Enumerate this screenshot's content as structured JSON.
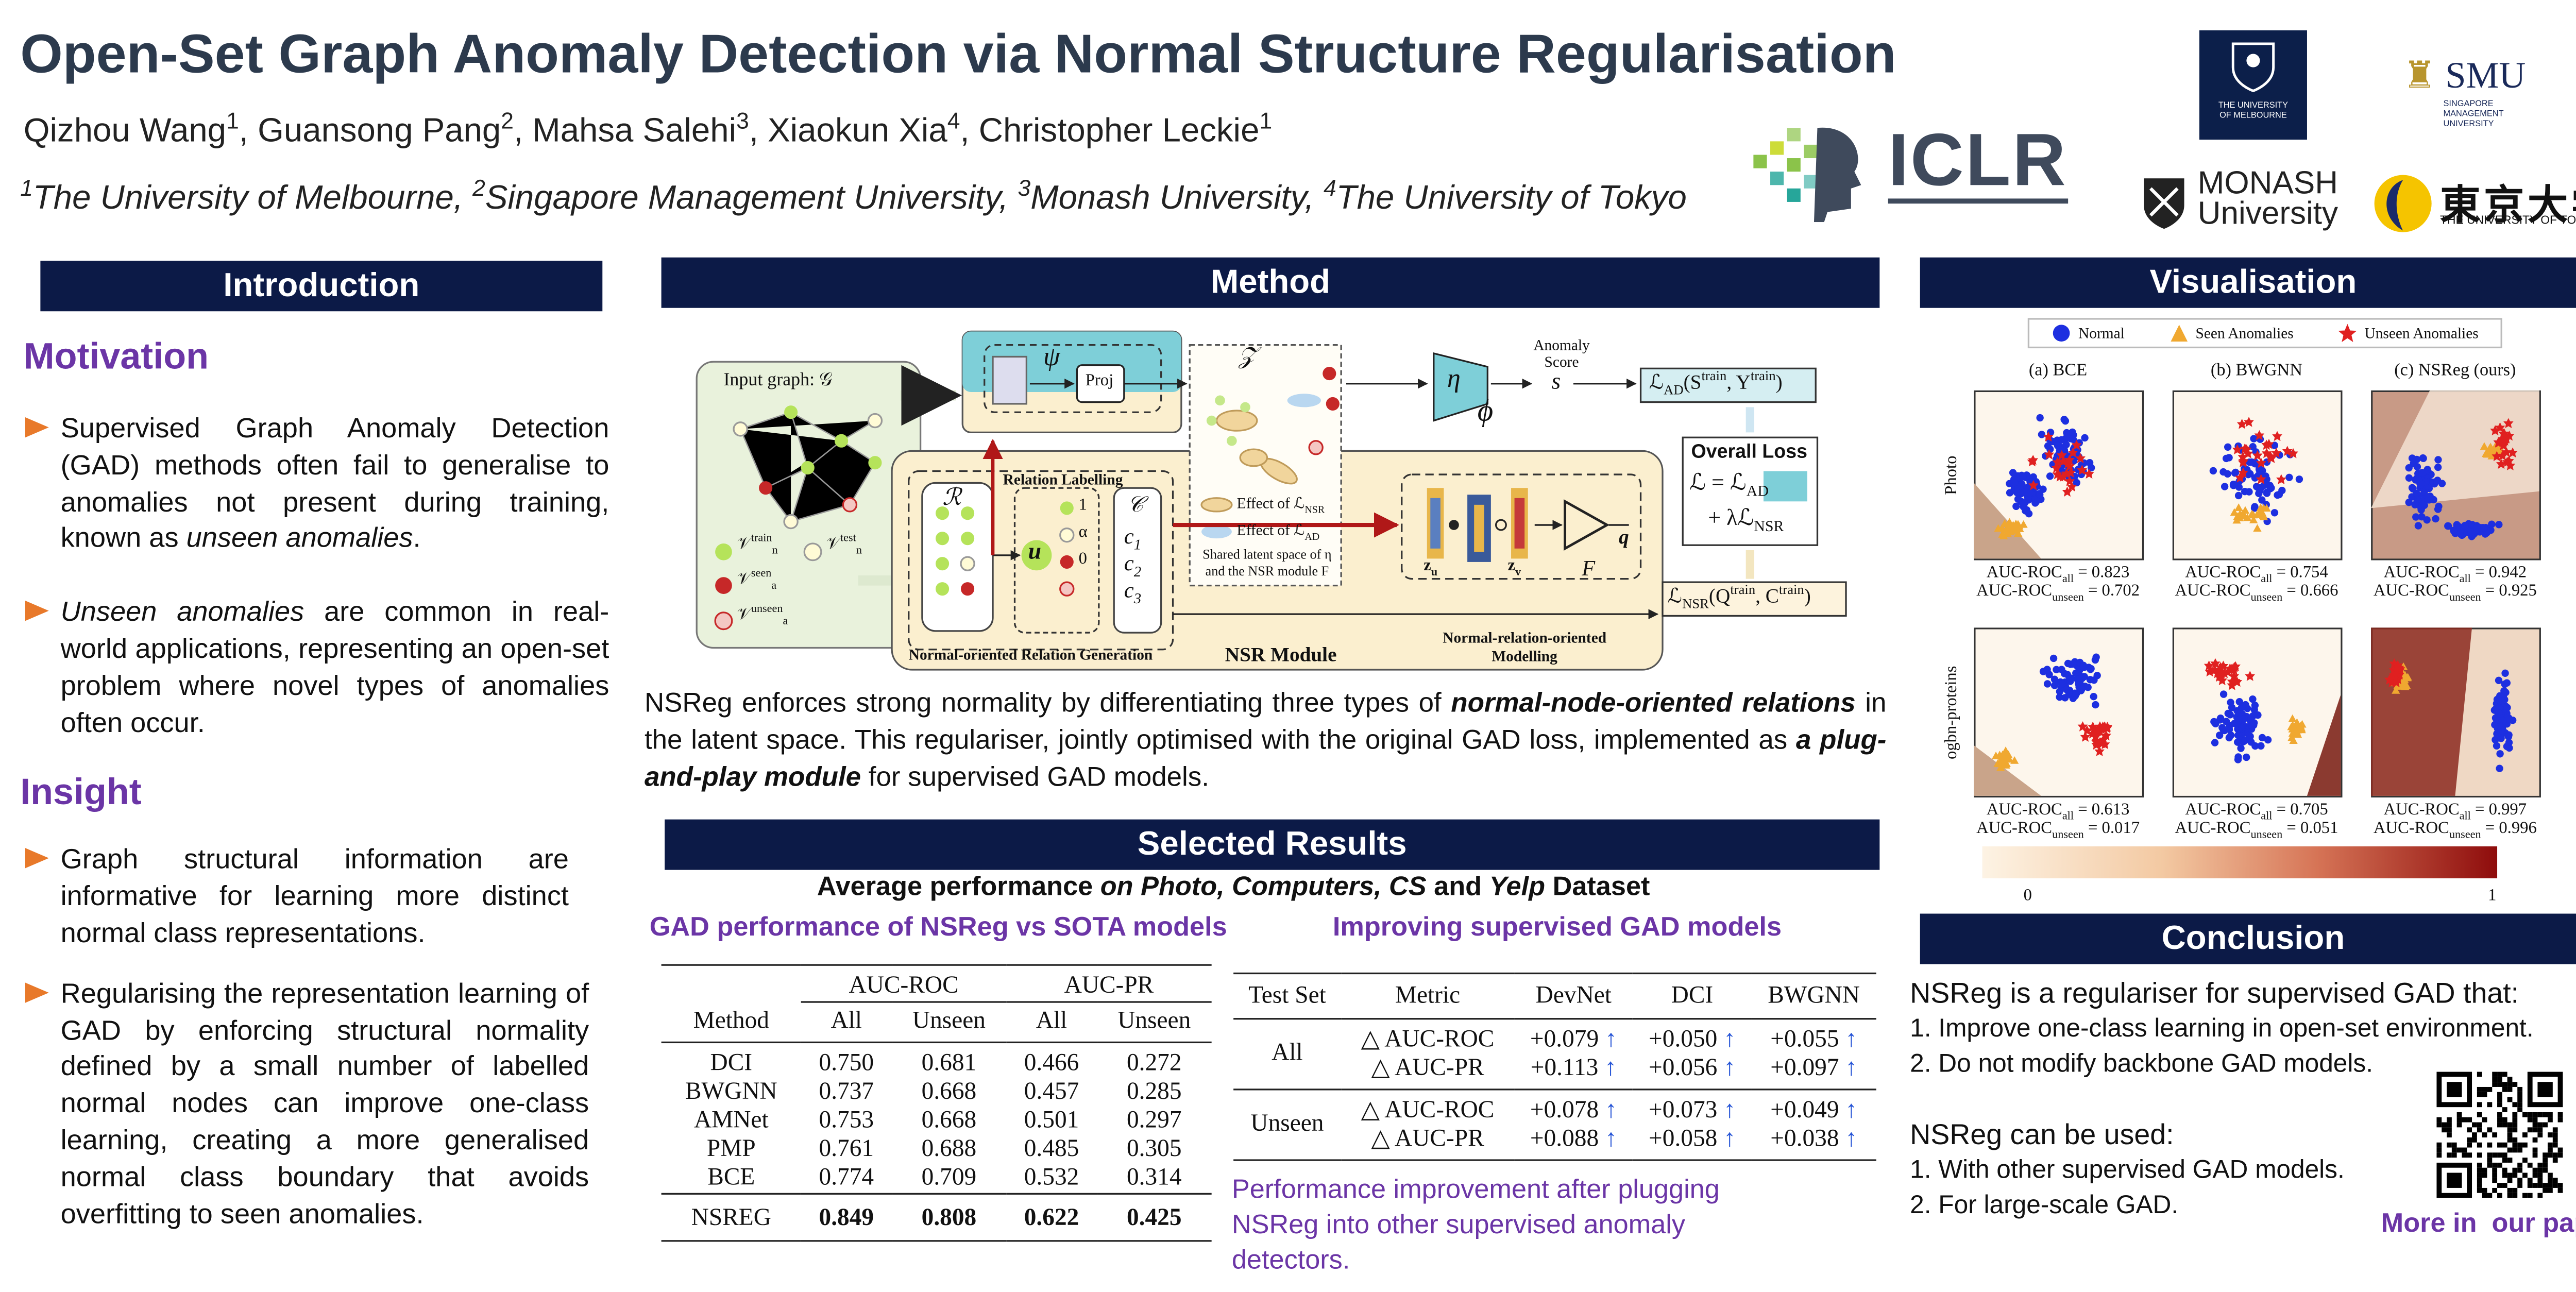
{
  "header": {
    "title": "Open-Set Graph Anomaly Detection via Normal Structure Regularisation",
    "authors": [
      "Qizhou Wang",
      {
        "sup": "1"
      },
      ", Guansong Pang",
      {
        "sup": "2"
      },
      ", Mahsa Salehi",
      {
        "sup": "3"
      },
      ", Xiaokun Xia",
      {
        "sup": "4"
      },
      ", Christopher Leckie",
      {
        "sup": "1"
      }
    ],
    "affiliations": [
      {
        "sup": "1"
      },
      "The University of Melbourne, ",
      {
        "sup": "2"
      },
      "Singapore Management University, ",
      {
        "sup": "3"
      },
      "Monash University, ",
      {
        "sup": "4"
      },
      "The University of Tokyo"
    ],
    "logos": {
      "iclr": "ICLR",
      "melbourne": "THE UNIVERSITY OF MELBOURNE",
      "smu": "SMU",
      "smu_full": "SINGAPORE MANAGEMENT UNIVERSITY",
      "monash_1": "MONASH",
      "monash_2": "University",
      "tokyo": "東京大学",
      "tokyo_full": "THE UNIVERSITY OF TOKYO"
    }
  },
  "introduction": {
    "heading": "Introduction",
    "motivation": {
      "heading": "Motivation",
      "bullets": [
        [
          "Supervised Graph Anomaly Detection (GAD) methods often fail to generalise to anomalies not present during training, known as ",
          {
            "i": "unseen anomalies"
          },
          "."
        ],
        [
          {
            "i": "Unseen anomalies"
          },
          " are common in real-world applications, representing an open-set problem where novel types of anomalies often occur."
        ]
      ]
    },
    "insight": {
      "heading": "Insight",
      "bullets": [
        [
          "Graph structural information are informative for learning more distinct normal class representations."
        ],
        [
          "Regularising the representation learning of GAD by enforcing structural normality defined by a small number of labelled normal nodes can improve one-class learning, creating a more generalised normal class boundary that avoids overfitting to seen anomalies."
        ]
      ]
    }
  },
  "method": {
    "heading": "Method",
    "diagram": {
      "input_graph": "Input graph: 𝒢",
      "legend": [
        [
          "𝒱",
          {
            "sup": "train"
          },
          {
            "sub": "n"
          }
        ],
        [
          "𝒱",
          {
            "sup": "test"
          },
          {
            "sub": "n"
          }
        ],
        [
          "𝒱",
          {
            "sup": "seen"
          },
          {
            "sub": "a"
          }
        ],
        [
          "𝒱",
          {
            "sup": "unseen"
          },
          {
            "sub": "a"
          }
        ]
      ],
      "psi": "ψ",
      "proj": "Proj",
      "latent": "𝒵",
      "eta": "η",
      "phi": "ϕ",
      "anomaly_score": "Anomaly Score",
      "s": "s",
      "loss_ad": [
        "ℒ",
        {
          "sub": "AD"
        },
        "(S",
        {
          "sup": "train"
        },
        ", Y",
        {
          "sup": "train"
        },
        ")"
      ],
      "overall_loss": "Overall Loss",
      "overall_1": [
        "ℒ = ℒ",
        {
          "sub": "AD"
        }
      ],
      "overall_2": [
        "+ λℒ",
        {
          "sub": "NSR"
        }
      ],
      "loss_nsr": [
        "ℒ",
        {
          "sub": "NSR"
        },
        "(Q",
        {
          "sup": "train"
        },
        ", C",
        {
          "sup": "train"
        },
        ")"
      ],
      "relation_labelling": "Relation Labelling",
      "r": "ℛ",
      "u": "u",
      "rel_values": [
        "1",
        "α",
        "0"
      ],
      "c": "𝒞",
      "c_items": [
        [
          "c",
          {
            "sub": "1"
          }
        ],
        [
          "c",
          {
            "sub": "2"
          }
        ],
        [
          "c",
          {
            "sub": "3"
          }
        ]
      ],
      "effect_nsr": [
        "Effect of ℒ",
        {
          "sub": "NSR"
        }
      ],
      "effect_ad": [
        "Effect of ℒ",
        {
          "sub": "AD"
        }
      ],
      "shared": "Shared latent space of η and the NSR module F",
      "zu": [
        "z",
        {
          "sub": "u"
        }
      ],
      "zv": [
        "z",
        {
          "sub": "v"
        }
      ],
      "f": "F",
      "q": "q",
      "gen": "Normal-oriented Relation Generation",
      "nsr_module": "NSR Module",
      "modelling": "Normal-relation-oriented Modelling"
    },
    "description": [
      "NSReg enforces strong normality by differentiating three types of ",
      {
        "bi": "normal-node-oriented relations"
      },
      " in the latent space. This regulariser, jointly optimised with the original GAD loss, implemented as ",
      {
        "bi": "a plug-and-play module"
      },
      " for supervised GAD models."
    ]
  },
  "results": {
    "heading": "Selected Results",
    "subheading": [
      "Average performance ",
      {
        "bi": "on Photo, Computers, CS"
      },
      " and ",
      {
        "bi": "Yelp"
      },
      " Dataset"
    ],
    "sota": {
      "title": "GAD performance of NSReg vs SOTA models",
      "groups": [
        "AUC-ROC",
        "AUC-PR"
      ],
      "columns": [
        "Method",
        "All",
        "Unseen",
        "All",
        "Unseen"
      ],
      "rows": [
        [
          "DCI",
          "0.750",
          "0.681",
          "0.466",
          "0.272"
        ],
        [
          "BWGNN",
          "0.737",
          "0.668",
          "0.457",
          "0.285"
        ],
        [
          "AMNet",
          "0.753",
          "0.668",
          "0.501",
          "0.297"
        ],
        [
          "PMP",
          "0.761",
          "0.688",
          "0.485",
          "0.305"
        ],
        [
          "BCE",
          "0.774",
          "0.709",
          "0.532",
          "0.314"
        ]
      ],
      "ours": [
        "NSREG",
        "0.849",
        "0.808",
        "0.622",
        "0.425"
      ]
    },
    "plugin": {
      "title": "Improving supervised GAD models",
      "columns": [
        "Test Set",
        "Metric",
        "DevNet",
        "DCI",
        "BWGNN"
      ],
      "groups": [
        {
          "set": "All",
          "rows": [
            [
              "△ AUC-ROC",
              "+0.079",
              "+0.050",
              "+0.055"
            ],
            [
              "△ AUC-PR",
              "+0.113",
              "+0.056",
              "+0.097"
            ]
          ]
        },
        {
          "set": "Unseen",
          "rows": [
            [
              "△ AUC-ROC",
              "+0.078",
              "+0.073",
              "+0.049"
            ],
            [
              "△ AUC-PR",
              "+0.088",
              "+0.058",
              "+0.038"
            ]
          ]
        }
      ],
      "caption": "Performance improvement after plugging NSReg into other supervised anomaly detectors."
    }
  },
  "visualisation": {
    "heading": "Visualisation",
    "legend": [
      "Normal",
      "Seen Anomalies",
      "Unseen Anomalies"
    ],
    "columns": [
      "(a) BCE",
      "(b) BWGNN",
      "(c) NSReg (ours)"
    ],
    "rows": [
      {
        "label": "Photo",
        "panels": [
          {
            "all": [
              "AUC-ROC",
              {
                "sub": "all"
              },
              " = 0.823"
            ],
            "unseen": [
              "AUC-ROC",
              {
                "sub": "unseen"
              },
              " = 0.702"
            ]
          },
          {
            "all": [
              "AUC-ROC",
              {
                "sub": "all"
              },
              " = 0.754"
            ],
            "unseen": [
              "AUC-ROC",
              {
                "sub": "unseen"
              },
              " = 0.666"
            ]
          },
          {
            "all": [
              "AUC-ROC",
              {
                "sub": "all"
              },
              " = 0.942"
            ],
            "unseen": [
              "AUC-ROC",
              {
                "sub": "unseen"
              },
              " = 0.925"
            ]
          }
        ]
      },
      {
        "label": "ogbn-proteins",
        "panels": [
          {
            "all": [
              "AUC-ROC",
              {
                "sub": "all"
              },
              " = 0.613"
            ],
            "unseen": [
              "AUC-ROC",
              {
                "sub": "unseen"
              },
              " = 0.017"
            ]
          },
          {
            "all": [
              "AUC-ROC",
              {
                "sub": "all"
              },
              " = 0.705"
            ],
            "unseen": [
              "AUC-ROC",
              {
                "sub": "unseen"
              },
              " = 0.051"
            ]
          },
          {
            "all": [
              "AUC-ROC",
              {
                "sub": "all"
              },
              " = 0.997"
            ],
            "unseen": [
              "AUC-ROC",
              {
                "sub": "unseen"
              },
              " = 0.996"
            ]
          }
        ]
      }
    ],
    "colorbar": [
      "0",
      "1"
    ]
  },
  "conclusion": {
    "heading": "Conclusion",
    "intro": "NSReg is a regulariser for supervised GAD that:",
    "points": [
      "1. Improve one-class learning in open-set environment.",
      "2. Do not modify backbone GAD models."
    ],
    "usage": "NSReg can be used:",
    "usage_points": [
      "1. With other supervised GAD models.",
      "2. For large-scale GAD."
    ],
    "more": "More in  our paper!"
  }
}
